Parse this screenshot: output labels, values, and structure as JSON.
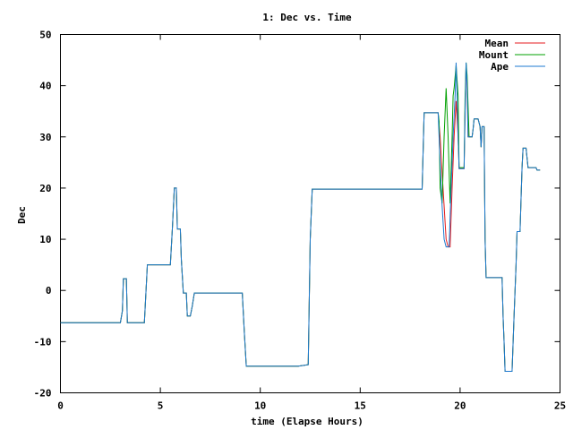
{
  "chart_data": {
    "type": "line",
    "title": "1: Dec vs. Time",
    "xlabel": "time (Elapse Hours)",
    "ylabel": "Dec",
    "xlim": [
      0,
      25
    ],
    "ylim": [
      -20,
      50
    ],
    "xticks": [
      0,
      5,
      10,
      15,
      20,
      25
    ],
    "yticks": [
      -20,
      -10,
      0,
      10,
      20,
      30,
      40,
      50
    ],
    "grid": false,
    "legend_position": "top-right",
    "series": [
      {
        "name": "Mean",
        "color": "#e41a1c",
        "points": [
          [
            0,
            -6.3
          ],
          [
            3.0,
            -6.3
          ],
          [
            3.1,
            -4
          ],
          [
            3.15,
            2.3
          ],
          [
            3.3,
            2.3
          ],
          [
            3.35,
            -6.3
          ],
          [
            4.2,
            -6.3
          ],
          [
            4.35,
            5
          ],
          [
            5.4,
            5
          ],
          [
            5.5,
            5
          ],
          [
            5.6,
            12
          ],
          [
            5.7,
            20
          ],
          [
            5.8,
            20
          ],
          [
            5.85,
            12
          ],
          [
            6.0,
            12
          ],
          [
            6.05,
            6
          ],
          [
            6.15,
            -0.5
          ],
          [
            6.3,
            -0.5
          ],
          [
            6.35,
            -5
          ],
          [
            6.5,
            -5
          ],
          [
            6.6,
            -3
          ],
          [
            6.7,
            -0.5
          ],
          [
            9.1,
            -0.5
          ],
          [
            9.2,
            -8
          ],
          [
            9.3,
            -14.8
          ],
          [
            11.9,
            -14.8
          ],
          [
            12.4,
            -14.5
          ],
          [
            12.5,
            10
          ],
          [
            12.6,
            19.8
          ],
          [
            18.1,
            19.8
          ],
          [
            18.2,
            34.7
          ],
          [
            18.9,
            34.7
          ],
          [
            19.0,
            30
          ],
          [
            19.1,
            23
          ],
          [
            19.3,
            10
          ],
          [
            19.4,
            8.5
          ],
          [
            19.5,
            8.5
          ],
          [
            19.6,
            20
          ],
          [
            19.7,
            30
          ],
          [
            19.8,
            37
          ],
          [
            19.9,
            30
          ],
          [
            19.95,
            23.8
          ],
          [
            20.2,
            23.8
          ],
          [
            20.25,
            35
          ],
          [
            20.3,
            44
          ],
          [
            20.35,
            40
          ],
          [
            20.4,
            30
          ],
          [
            20.6,
            30
          ],
          [
            20.65,
            31.5
          ],
          [
            20.7,
            33.5
          ],
          [
            20.9,
            33.5
          ],
          [
            21.0,
            32
          ],
          [
            21.05,
            28
          ],
          [
            21.1,
            32
          ],
          [
            21.2,
            32
          ],
          [
            21.25,
            10
          ],
          [
            21.3,
            2.5
          ],
          [
            22.1,
            2.5
          ],
          [
            22.15,
            -5
          ],
          [
            22.2,
            -10
          ],
          [
            22.25,
            -15.8
          ],
          [
            22.6,
            -15.8
          ],
          [
            22.7,
            -5
          ],
          [
            22.8,
            5
          ],
          [
            22.85,
            11.5
          ],
          [
            23.0,
            11.5
          ],
          [
            23.05,
            18
          ],
          [
            23.1,
            24
          ],
          [
            23.15,
            27.8
          ],
          [
            23.3,
            27.8
          ],
          [
            23.4,
            24
          ],
          [
            23.8,
            24
          ],
          [
            23.85,
            23.5
          ],
          [
            24.0,
            23.5
          ]
        ]
      },
      {
        "name": "Mount",
        "color": "#00a000",
        "points": [
          [
            0,
            -6.3
          ],
          [
            3.0,
            -6.3
          ],
          [
            3.1,
            -4
          ],
          [
            3.15,
            2.3
          ],
          [
            3.3,
            2.3
          ],
          [
            3.35,
            -6.3
          ],
          [
            4.2,
            -6.3
          ],
          [
            4.35,
            5
          ],
          [
            5.4,
            5
          ],
          [
            5.5,
            5
          ],
          [
            5.6,
            12
          ],
          [
            5.7,
            20
          ],
          [
            5.8,
            20
          ],
          [
            5.85,
            12
          ],
          [
            6.0,
            12
          ],
          [
            6.05,
            6
          ],
          [
            6.15,
            -0.5
          ],
          [
            6.3,
            -0.5
          ],
          [
            6.35,
            -5
          ],
          [
            6.5,
            -5
          ],
          [
            6.6,
            -3
          ],
          [
            6.7,
            -0.5
          ],
          [
            9.1,
            -0.5
          ],
          [
            9.2,
            -8
          ],
          [
            9.3,
            -14.8
          ],
          [
            11.9,
            -14.8
          ],
          [
            12.4,
            -14.5
          ],
          [
            12.5,
            10
          ],
          [
            12.6,
            19.8
          ],
          [
            18.1,
            19.8
          ],
          [
            18.2,
            34.7
          ],
          [
            18.9,
            34.7
          ],
          [
            18.95,
            33
          ],
          [
            19.0,
            20
          ],
          [
            19.1,
            17
          ],
          [
            19.2,
            30
          ],
          [
            19.3,
            39.5
          ],
          [
            19.4,
            30
          ],
          [
            19.5,
            17
          ],
          [
            19.6,
            30
          ],
          [
            19.65,
            38
          ],
          [
            19.7,
            39.5
          ],
          [
            19.8,
            44
          ],
          [
            19.9,
            38
          ],
          [
            19.95,
            24
          ],
          [
            20.2,
            24
          ],
          [
            20.25,
            38
          ],
          [
            20.3,
            44.5
          ],
          [
            20.35,
            42
          ],
          [
            20.4,
            36
          ],
          [
            20.45,
            30
          ],
          [
            20.6,
            30
          ],
          [
            20.65,
            31.5
          ],
          [
            20.7,
            33.5
          ],
          [
            20.9,
            33.5
          ],
          [
            21.0,
            32
          ],
          [
            21.05,
            28
          ],
          [
            21.1,
            32
          ],
          [
            21.2,
            32
          ],
          [
            21.25,
            10
          ],
          [
            21.3,
            2.5
          ],
          [
            22.1,
            2.5
          ],
          [
            22.15,
            -5
          ],
          [
            22.2,
            -10
          ],
          [
            22.25,
            -15.8
          ],
          [
            22.6,
            -15.8
          ],
          [
            22.7,
            -5
          ],
          [
            22.8,
            5
          ],
          [
            22.85,
            11.5
          ],
          [
            23.0,
            11.5
          ],
          [
            23.05,
            18
          ],
          [
            23.1,
            24
          ],
          [
            23.15,
            27.8
          ],
          [
            23.3,
            27.8
          ],
          [
            23.4,
            24
          ],
          [
            23.8,
            24
          ],
          [
            23.85,
            23.5
          ],
          [
            24.0,
            23.5
          ]
        ]
      },
      {
        "name": "Ape",
        "color": "#1e78d0",
        "points": [
          [
            0,
            -6.3
          ],
          [
            3.0,
            -6.3
          ],
          [
            3.1,
            -4
          ],
          [
            3.15,
            2.3
          ],
          [
            3.3,
            2.3
          ],
          [
            3.35,
            -6.3
          ],
          [
            4.2,
            -6.3
          ],
          [
            4.35,
            5
          ],
          [
            5.4,
            5
          ],
          [
            5.5,
            5
          ],
          [
            5.6,
            12
          ],
          [
            5.7,
            20
          ],
          [
            5.8,
            20
          ],
          [
            5.85,
            12
          ],
          [
            6.0,
            12
          ],
          [
            6.05,
            6
          ],
          [
            6.15,
            -0.5
          ],
          [
            6.3,
            -0.5
          ],
          [
            6.35,
            -5
          ],
          [
            6.5,
            -5
          ],
          [
            6.6,
            -3
          ],
          [
            6.7,
            -0.5
          ],
          [
            9.1,
            -0.5
          ],
          [
            9.2,
            -8
          ],
          [
            9.3,
            -14.8
          ],
          [
            11.9,
            -14.8
          ],
          [
            12.4,
            -14.5
          ],
          [
            12.5,
            10
          ],
          [
            12.6,
            19.8
          ],
          [
            18.1,
            19.8
          ],
          [
            18.2,
            34.7
          ],
          [
            18.9,
            34.7
          ],
          [
            19.0,
            25
          ],
          [
            19.1,
            16.5
          ],
          [
            19.2,
            10
          ],
          [
            19.3,
            8.5
          ],
          [
            19.45,
            8.5
          ],
          [
            19.55,
            20
          ],
          [
            19.65,
            30
          ],
          [
            19.75,
            38
          ],
          [
            19.8,
            44.5
          ],
          [
            19.85,
            38
          ],
          [
            19.9,
            30
          ],
          [
            19.95,
            23.8
          ],
          [
            20.2,
            23.8
          ],
          [
            20.25,
            35
          ],
          [
            20.3,
            44.5
          ],
          [
            20.35,
            40
          ],
          [
            20.4,
            30
          ],
          [
            20.6,
            30
          ],
          [
            20.65,
            31.5
          ],
          [
            20.7,
            33.5
          ],
          [
            20.9,
            33.5
          ],
          [
            21.0,
            32
          ],
          [
            21.05,
            28
          ],
          [
            21.1,
            32
          ],
          [
            21.2,
            32
          ],
          [
            21.25,
            10
          ],
          [
            21.3,
            2.5
          ],
          [
            22.1,
            2.5
          ],
          [
            22.15,
            -5
          ],
          [
            22.2,
            -10
          ],
          [
            22.25,
            -15.8
          ],
          [
            22.6,
            -15.8
          ],
          [
            22.7,
            -5
          ],
          [
            22.8,
            5
          ],
          [
            22.85,
            11.5
          ],
          [
            23.0,
            11.5
          ],
          [
            23.05,
            18
          ],
          [
            23.1,
            24
          ],
          [
            23.15,
            27.8
          ],
          [
            23.3,
            27.8
          ],
          [
            23.4,
            24
          ],
          [
            23.8,
            24
          ],
          [
            23.85,
            23.5
          ],
          [
            24.0,
            23.5
          ]
        ]
      }
    ]
  }
}
